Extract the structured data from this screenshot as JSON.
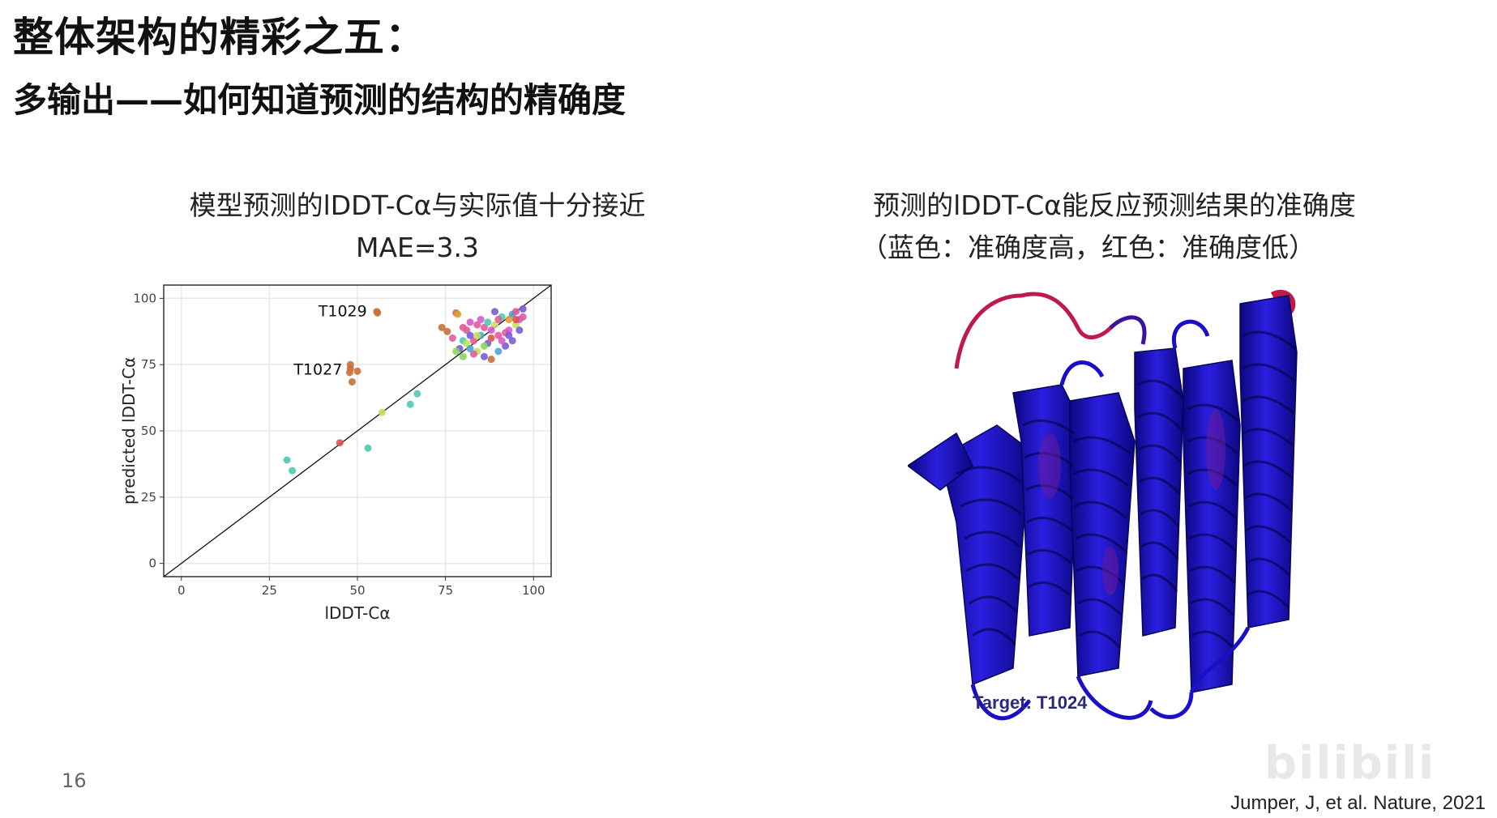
{
  "slide": {
    "title": "整体架构的精彩之五：",
    "subtitle": "多输出——如何知道预测的结构的精确度",
    "page_number": "16",
    "citation": "Jumper, J, et al. Nature, 2021",
    "watermark": "bilibili"
  },
  "left_panel": {
    "caption_line1": "模型预测的lDDT-Cα与实际值十分接近",
    "caption_line2": "MAE=3.3"
  },
  "right_panel": {
    "caption_line1": "预测的lDDT-Cα能反应预测结果的准确度",
    "caption_line2": "（蓝色：准确度高，红色：准确度低）",
    "target_label": "Target: T1024"
  },
  "chart_data": {
    "type": "scatter",
    "xlabel": "lDDT-Cα",
    "ylabel": "predicted lDDT-Cα",
    "xlim": [
      -5,
      105
    ],
    "ylim": [
      -5,
      105
    ],
    "xticks": [
      0,
      25,
      50,
      75,
      100
    ],
    "yticks": [
      0,
      25,
      50,
      75,
      100
    ],
    "grid": true,
    "reference_line": "y = x",
    "annotations": [
      {
        "text": "T1029",
        "x": 55,
        "y": 95
      },
      {
        "text": "T1027",
        "x": 48,
        "y": 73
      }
    ],
    "points": [
      {
        "x": 30,
        "y": 39,
        "color": "#4fc9b0"
      },
      {
        "x": 31.5,
        "y": 35,
        "color": "#4fc9b0"
      },
      {
        "x": 45,
        "y": 45.5,
        "color": "#d9534f"
      },
      {
        "x": 53,
        "y": 43.5,
        "color": "#4fc9b0"
      },
      {
        "x": 57,
        "y": 57,
        "color": "#c5e05a"
      },
      {
        "x": 65,
        "y": 60,
        "color": "#4fc9b0"
      },
      {
        "x": 67,
        "y": 64,
        "color": "#4fc9b0"
      },
      {
        "x": 55.5,
        "y": 95,
        "color": "#c8703a"
      },
      {
        "x": 55.7,
        "y": 94.5,
        "color": "#c8703a"
      },
      {
        "x": 48,
        "y": 75,
        "color": "#c8703a"
      },
      {
        "x": 48,
        "y": 73.5,
        "color": "#c8703a"
      },
      {
        "x": 47.8,
        "y": 72,
        "color": "#c8703a"
      },
      {
        "x": 50,
        "y": 72.5,
        "color": "#c8703a"
      },
      {
        "x": 48.5,
        "y": 68.5,
        "color": "#c8703a"
      },
      {
        "x": 74,
        "y": 89,
        "color": "#c8703a"
      },
      {
        "x": 75.5,
        "y": 87.5,
        "color": "#c8703a"
      },
      {
        "x": 78,
        "y": 94.5,
        "color": "#c8703a"
      },
      {
        "x": 78.5,
        "y": 94,
        "color": "#e0a030"
      },
      {
        "x": 77,
        "y": 85,
        "color": "#e05a9a"
      },
      {
        "x": 79,
        "y": 81,
        "color": "#7a5cd6"
      },
      {
        "x": 80,
        "y": 78,
        "color": "#8ad65a"
      },
      {
        "x": 81,
        "y": 88,
        "color": "#e05a9a"
      },
      {
        "x": 82,
        "y": 91,
        "color": "#d65ad0"
      },
      {
        "x": 83,
        "y": 84,
        "color": "#e05a9a"
      },
      {
        "x": 84,
        "y": 80,
        "color": "#c5e05a"
      },
      {
        "x": 85,
        "y": 86,
        "color": "#4fa3d6"
      },
      {
        "x": 86,
        "y": 89,
        "color": "#e05a9a"
      },
      {
        "x": 87,
        "y": 83,
        "color": "#7a5cd6"
      },
      {
        "x": 88,
        "y": 77,
        "color": "#c8703a"
      },
      {
        "x": 89,
        "y": 90,
        "color": "#c5e05a"
      },
      {
        "x": 90,
        "y": 86,
        "color": "#e05a9a"
      },
      {
        "x": 91,
        "y": 93,
        "color": "#4fc9b0"
      },
      {
        "x": 92,
        "y": 82,
        "color": "#7a5cd6"
      },
      {
        "x": 93,
        "y": 88,
        "color": "#d65ad0"
      },
      {
        "x": 94,
        "y": 94,
        "color": "#4fa3d6"
      },
      {
        "x": 95,
        "y": 90,
        "color": "#c5e05a"
      },
      {
        "x": 96,
        "y": 92,
        "color": "#d65ad0"
      },
      {
        "x": 97,
        "y": 96,
        "color": "#7a5cd6"
      },
      {
        "x": 80,
        "y": 84,
        "color": "#4fc9b0"
      },
      {
        "x": 82,
        "y": 86,
        "color": "#7a5cd6"
      },
      {
        "x": 84,
        "y": 90,
        "color": "#e05a9a"
      },
      {
        "x": 86,
        "y": 82,
        "color": "#8ad65a"
      },
      {
        "x": 88,
        "y": 85,
        "color": "#d9534f"
      },
      {
        "x": 90,
        "y": 80,
        "color": "#4fa3d6"
      },
      {
        "x": 92,
        "y": 87,
        "color": "#e05a9a"
      },
      {
        "x": 94,
        "y": 84,
        "color": "#7a5cd6"
      },
      {
        "x": 95,
        "y": 95,
        "color": "#e05a9a"
      },
      {
        "x": 96,
        "y": 88,
        "color": "#7a5cd6"
      },
      {
        "x": 93,
        "y": 92,
        "color": "#e0a030"
      },
      {
        "x": 89,
        "y": 95,
        "color": "#7a5cd6"
      },
      {
        "x": 85,
        "y": 92,
        "color": "#d65ad0"
      },
      {
        "x": 83,
        "y": 79,
        "color": "#e05a9a"
      },
      {
        "x": 81,
        "y": 83,
        "color": "#c5e05a"
      },
      {
        "x": 87,
        "y": 91,
        "color": "#4fc9b0"
      },
      {
        "x": 91,
        "y": 84,
        "color": "#d65ad0"
      },
      {
        "x": 78,
        "y": 80,
        "color": "#8ad65a"
      },
      {
        "x": 97,
        "y": 93,
        "color": "#e05a9a"
      },
      {
        "x": 86,
        "y": 78,
        "color": "#7a5cd6"
      },
      {
        "x": 90,
        "y": 92,
        "color": "#e05a9a"
      },
      {
        "x": 82,
        "y": 81,
        "color": "#4fa3d6"
      },
      {
        "x": 88,
        "y": 88,
        "color": "#d65ad0"
      },
      {
        "x": 84,
        "y": 86,
        "color": "#c5e05a"
      },
      {
        "x": 80,
        "y": 89,
        "color": "#e05a9a"
      },
      {
        "x": 93,
        "y": 86,
        "color": "#7a5cd6"
      },
      {
        "x": 95,
        "y": 92,
        "color": "#d9534f"
      }
    ]
  },
  "colors": {
    "chart_frame": "#333333",
    "grid": "#e8e8e8",
    "protein_blue": "#1a0fc9",
    "protein_shade": "#0c0780",
    "protein_red": "#c01a4a",
    "target_label": "#2a2a7a"
  },
  "icons": {
    "protein_structure": "protein-ribbon-image"
  }
}
